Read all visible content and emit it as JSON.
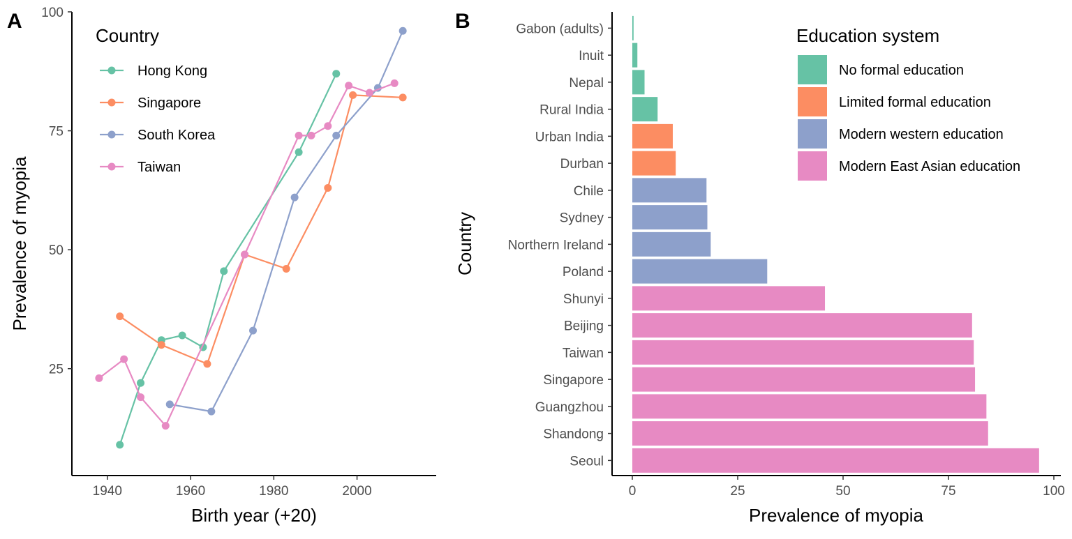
{
  "chart_data": [
    {
      "panel": "A",
      "type": "line",
      "xlabel": "Birth year (+20)",
      "ylabel": "Prevalence of myopia",
      "xlim": [
        1935,
        2015
      ],
      "ylim": [
        4,
        100
      ],
      "x_ticks": [
        1940,
        1960,
        1980,
        2000
      ],
      "y_ticks": [
        25,
        50,
        75,
        100
      ],
      "grid": false,
      "legend": {
        "title": "Country",
        "position": "top-left"
      },
      "series": [
        {
          "name": "Hong Kong",
          "color": "#66c2a5",
          "x": [
            1943,
            1948,
            1953,
            1958,
            1963,
            1968,
            1986,
            1995
          ],
          "y": [
            9,
            22,
            31,
            32,
            29.5,
            45.5,
            70.5,
            87
          ]
        },
        {
          "name": "Singapore",
          "color": "#fc8d62",
          "x": [
            1943,
            1953,
            1964,
            1973,
            1983,
            1993,
            1999,
            2011
          ],
          "y": [
            36,
            30,
            26,
            49,
            46,
            63,
            82.5,
            82
          ]
        },
        {
          "name": "South Korea",
          "color": "#8da0cb",
          "x": [
            1955,
            1965,
            1975,
            1985,
            1995,
            2005,
            2011
          ],
          "y": [
            17.5,
            16,
            33,
            61,
            74,
            84,
            96
          ]
        },
        {
          "name": "Taiwan",
          "color": "#e78ac3",
          "x": [
            1938,
            1944,
            1948,
            1954,
            1973,
            1986,
            1989,
            1993,
            1998,
            2003,
            2009
          ],
          "y": [
            23,
            27,
            19,
            13,
            49,
            74,
            74,
            76,
            84.5,
            83,
            85
          ]
        }
      ]
    },
    {
      "panel": "B",
      "type": "bar",
      "orientation": "horizontal",
      "xlabel": "Prevalence of myopia",
      "ylabel": "Country",
      "xlim": [
        0,
        100
      ],
      "x_ticks": [
        0,
        25,
        50,
        75,
        100
      ],
      "grid": false,
      "legend": {
        "title": "Education system",
        "position": "top-right"
      },
      "groups": [
        {
          "name": "No formal education",
          "color": "#66c2a5"
        },
        {
          "name": "Limited formal education",
          "color": "#fc8d62"
        },
        {
          "name": "Modern western education",
          "color": "#8da0cb"
        },
        {
          "name": "Modern East Asian education",
          "color": "#e78ac3"
        }
      ],
      "categories": [
        "Gabon (adults)",
        "Inuit",
        "Nepal",
        "Rural India",
        "Urban India",
        "Durban",
        "Chile",
        "Sydney",
        "Northern Ireland",
        "Poland",
        "Shunyi",
        "Beijing",
        "Taiwan",
        "Singapore",
        "Guangzhou",
        "Shandong",
        "Seoul"
      ],
      "values": [
        0.3,
        1.2,
        2.9,
        6.0,
        9.6,
        10.3,
        17.6,
        17.8,
        18.6,
        32.0,
        45.7,
        80.6,
        81.0,
        81.3,
        84.0,
        84.4,
        96.5
      ],
      "group_index": [
        0,
        0,
        0,
        0,
        1,
        1,
        2,
        2,
        2,
        2,
        3,
        3,
        3,
        3,
        3,
        3,
        3
      ]
    }
  ]
}
